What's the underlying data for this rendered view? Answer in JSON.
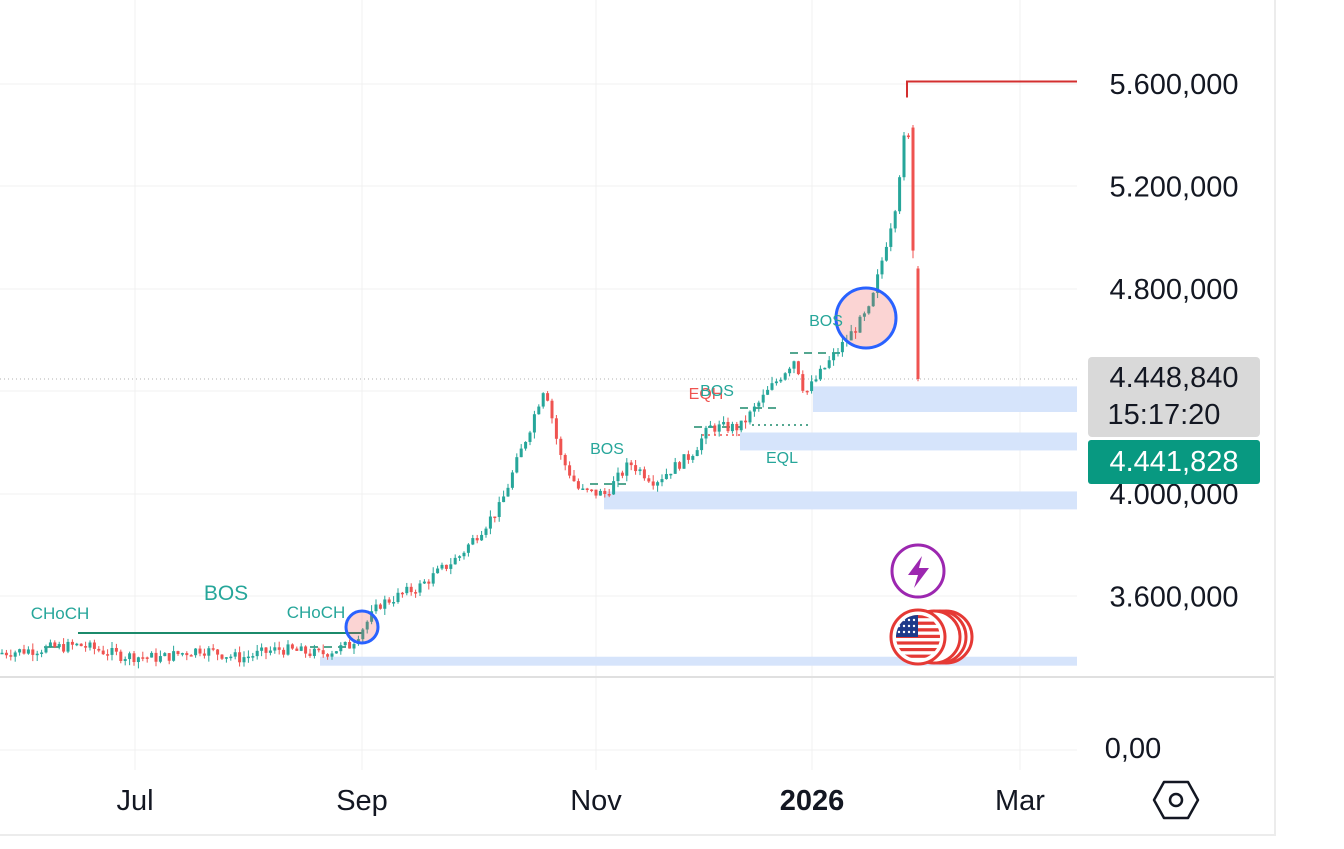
{
  "chart_data": {
    "type": "candlestick",
    "title": "",
    "y_ticks": [
      {
        "value": 5600000,
        "label": "5.600,000"
      },
      {
        "value": 5200000,
        "label": "5.200,000"
      },
      {
        "value": 4800000,
        "label": "4.800,000"
      },
      {
        "value": 4000000,
        "label": "4.000,000"
      },
      {
        "value": 3600000,
        "label": "3.600,000"
      }
    ],
    "secondary_pane_tick": {
      "value": 0,
      "label": "0,00"
    },
    "x_ticks": [
      {
        "label": "Jul",
        "bold": false
      },
      {
        "label": "Sep",
        "bold": false
      },
      {
        "label": "Nov",
        "bold": false
      },
      {
        "label": "2026",
        "bold": true
      },
      {
        "label": "Mar",
        "bold": false
      }
    ],
    "last_price": {
      "value": 4448840,
      "label": "4.448,840",
      "countdown": "15:17:20"
    },
    "current_price": {
      "value": 4441828,
      "label": "4.441,828"
    },
    "ylim": [
      3300000,
      5620000
    ],
    "grid": true,
    "annotations": [
      {
        "text": "CHoCH",
        "color": "#26a69a"
      },
      {
        "text": "BOS",
        "color": "#26a69a"
      },
      {
        "text": "CHoCH",
        "color": "#26a69a"
      },
      {
        "text": "BOS",
        "color": "#26a69a"
      },
      {
        "text": "EQH",
        "color": "#ef5350"
      },
      {
        "text": "BOS",
        "color": "#26a69a"
      },
      {
        "text": "EQL",
        "color": "#26a69a"
      },
      {
        "text": "BOS",
        "color": "#26a69a"
      }
    ],
    "key_levels": [
      {
        "name": "high-line",
        "value": 5610000,
        "color": "#d32f2f"
      }
    ],
    "zones": [
      {
        "low": 4320000,
        "high": 4420000
      },
      {
        "low": 4170000,
        "high": 4240000
      },
      {
        "low": 3940000,
        "high": 4010000
      },
      {
        "low": 3330000,
        "high": 3365000
      }
    ],
    "candle_colors": {
      "up": "#26a69a",
      "down": "#ef5350"
    }
  },
  "icons": {
    "lightning": "lightning-icon",
    "flag": "us-flag-icon",
    "settings": "settings-hexagon-icon"
  }
}
